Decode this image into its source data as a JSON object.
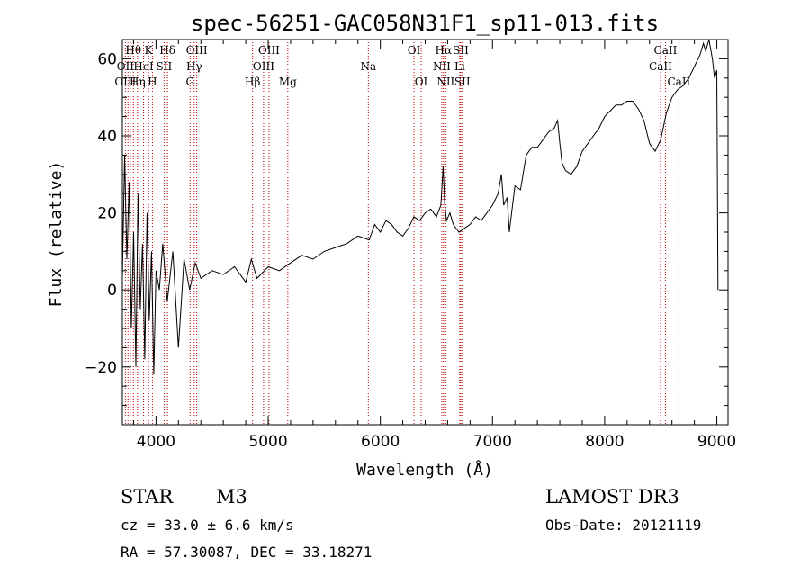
{
  "chart_data": {
    "type": "line",
    "title": "spec-56251-GAC058N31F1_sp11-013.fits",
    "xlabel": "Wavelength (Å)",
    "ylabel": "Flux (relative)",
    "xlim": [
      3700,
      9100
    ],
    "ylim": [
      -35,
      65
    ],
    "xticks": [
      4000,
      5000,
      6000,
      7000,
      8000,
      9000
    ],
    "yticks": [
      -20,
      0,
      20,
      40,
      60
    ],
    "grid": false,
    "series": [
      {
        "name": "spectrum",
        "x": [
          3700,
          3720,
          3740,
          3760,
          3780,
          3800,
          3820,
          3840,
          3860,
          3880,
          3900,
          3920,
          3940,
          3960,
          3980,
          4000,
          4030,
          4060,
          4100,
          4150,
          4200,
          4250,
          4300,
          4350,
          4400,
          4500,
          4600,
          4700,
          4800,
          4850,
          4900,
          5000,
          5100,
          5200,
          5300,
          5400,
          5500,
          5600,
          5700,
          5800,
          5900,
          5950,
          6000,
          6050,
          6100,
          6150,
          6200,
          6250,
          6300,
          6350,
          6400,
          6450,
          6500,
          6540,
          6560,
          6575,
          6590,
          6620,
          6650,
          6700,
          6750,
          6800,
          6850,
          6900,
          6950,
          7000,
          7050,
          7080,
          7100,
          7130,
          7150,
          7170,
          7200,
          7250,
          7300,
          7350,
          7400,
          7450,
          7500,
          7550,
          7580,
          7600,
          7620,
          7650,
          7700,
          7750,
          7800,
          7850,
          7900,
          7950,
          8000,
          8100,
          8150,
          8200,
          8250,
          8300,
          8350,
          8400,
          8450,
          8500,
          8550,
          8600,
          8650,
          8700,
          8750,
          8800,
          8850,
          8880,
          8900,
          8930,
          8960,
          8980,
          9000,
          9010
        ],
        "y": [
          3,
          35,
          8,
          28,
          -10,
          15,
          -20,
          25,
          -5,
          12,
          -18,
          20,
          -8,
          10,
          -22,
          5,
          0,
          12,
          -3,
          10,
          -15,
          8,
          0,
          7,
          3,
          5,
          4,
          6,
          2,
          8,
          3,
          6,
          5,
          7,
          9,
          8,
          10,
          11,
          12,
          14,
          13,
          17,
          15,
          18,
          17,
          15,
          14,
          16,
          19,
          18,
          20,
          21,
          19,
          22,
          32,
          22,
          18,
          20,
          17,
          15,
          16,
          17,
          19,
          18,
          20,
          22,
          25,
          30,
          22,
          24,
          15,
          20,
          27,
          26,
          35,
          37,
          37,
          39,
          41,
          42,
          44,
          38,
          33,
          31,
          30,
          32,
          36,
          38,
          40,
          42,
          45,
          48,
          48,
          49,
          49,
          47,
          44,
          38,
          36,
          39,
          46,
          50,
          52,
          53,
          55,
          58,
          61,
          64,
          62,
          65,
          60,
          55,
          57,
          0
        ]
      }
    ],
    "line_labels": [
      {
        "name": "Hθ",
        "wl": 3798
      },
      {
        "name": "K",
        "wl": 3934
      },
      {
        "name": "Hδ",
        "wl": 4102
      },
      {
        "name": "OIII",
        "wl": 4363
      },
      {
        "name": "OIII",
        "wl": 5007
      },
      {
        "name": "OI",
        "wl": 6300
      },
      {
        "name": "Hα",
        "wl": 6563
      },
      {
        "name": "SII",
        "wl": 6717
      },
      {
        "name": "CaII",
        "wl": 8542
      },
      {
        "name": "OII",
        "wl": 3727
      },
      {
        "name": "HeI",
        "wl": 3889
      },
      {
        "name": "SII",
        "wl": 4072
      },
      {
        "name": "Hγ",
        "wl": 4340
      },
      {
        "name": "OIII",
        "wl": 4959
      },
      {
        "name": "Na",
        "wl": 5893
      },
      {
        "name": "NII",
        "wl": 6548
      },
      {
        "name": "Li",
        "wl": 6708
      },
      {
        "name": "CaII",
        "wl": 8498
      },
      {
        "name": "OIII",
        "wl": 3727
      },
      {
        "name": "Hη",
        "wl": 3835
      },
      {
        "name": "H",
        "wl": 3968
      },
      {
        "name": "G",
        "wl": 4304
      },
      {
        "name": "Hβ",
        "wl": 4861
      },
      {
        "name": "Mg",
        "wl": 5175
      },
      {
        "name": "OI",
        "wl": 6364
      },
      {
        "name": "NII",
        "wl": 6583
      },
      {
        "name": "SII",
        "wl": 6731
      },
      {
        "name": "CaII",
        "wl": 8662
      }
    ],
    "line_markers": [
      3727,
      3750,
      3771,
      3798,
      3835,
      3889,
      3934,
      3968,
      4072,
      4102,
      4304,
      4340,
      4363,
      4861,
      4959,
      5007,
      5175,
      5893,
      6300,
      6364,
      6548,
      6563,
      6583,
      6708,
      6717,
      6731,
      8498,
      8542,
      8662
    ]
  },
  "info": {
    "object_type": "STAR",
    "subclass": "M3",
    "survey": "LAMOST DR3",
    "cz": "cz = 33.0 ± 6.6 km/s",
    "obs_date": "Obs-Date: 20121119",
    "coords": "RA =  57.30087, DEC =  33.18271"
  }
}
